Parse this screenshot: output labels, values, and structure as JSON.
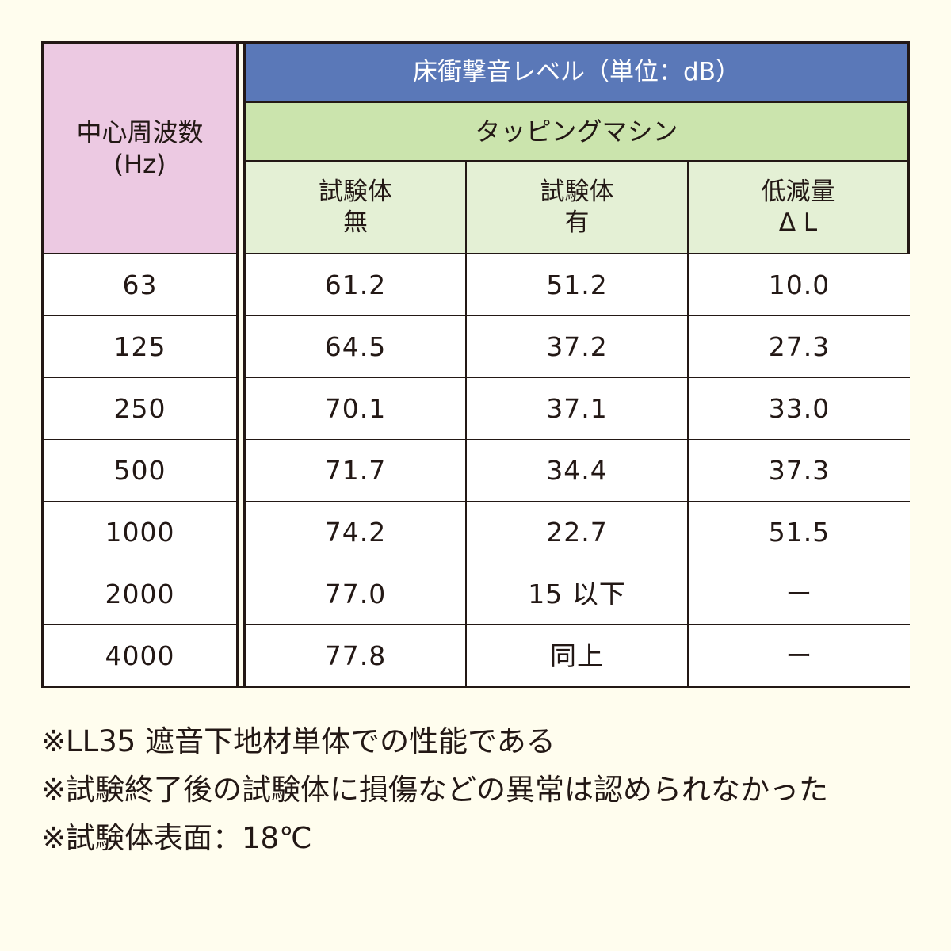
{
  "table": {
    "freq_header_line1": "中心周波数",
    "freq_header_line2": "(Hz)",
    "level_header": "床衝撃音レベル（単位：dB）",
    "source_header": "タッピングマシン",
    "col_without_line1": "試験体",
    "col_without_line2": "無",
    "col_with_line1": "試験体",
    "col_with_line2": "有",
    "col_reduction_line1": "低減量",
    "col_reduction_line2": "Δ L",
    "rows": [
      {
        "freq": "63",
        "without": "61.2",
        "with": "51.2",
        "reduction": "10.0"
      },
      {
        "freq": "125",
        "without": "64.5",
        "with": "37.2",
        "reduction": "27.3"
      },
      {
        "freq": "250",
        "without": "70.1",
        "with": "37.1",
        "reduction": "33.0"
      },
      {
        "freq": "500",
        "without": "71.7",
        "with": "34.4",
        "reduction": "37.3"
      },
      {
        "freq": "1000",
        "without": "74.2",
        "with": "22.7",
        "reduction": "51.5"
      },
      {
        "freq": "2000",
        "without": "77.0",
        "with": "15 以下",
        "reduction": "ー"
      },
      {
        "freq": "4000",
        "without": "77.8",
        "with": "同上",
        "reduction": "ー"
      }
    ]
  },
  "notes": [
    "※LL35 遮音下地材単体での性能である",
    "※試験終了後の試験体に損傷などの異常は認められなかった",
    "※試験体表面：18℃"
  ]
}
